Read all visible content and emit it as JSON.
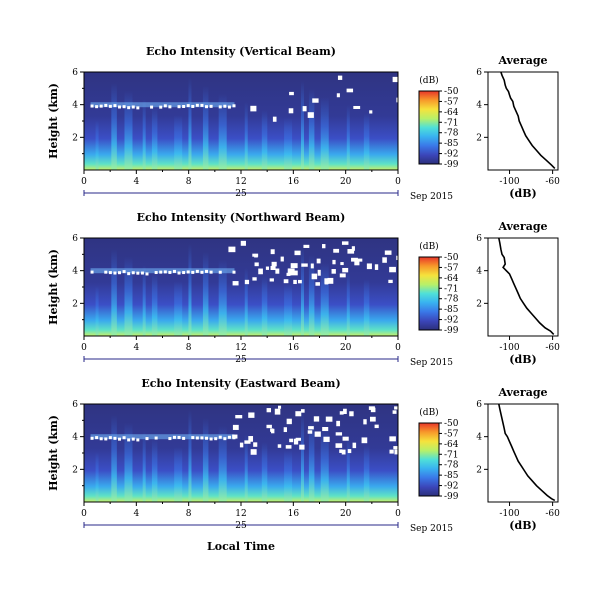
{
  "chart_data": [
    {
      "type": "heatmap",
      "title": "Echo Intensity (Vertical Beam)",
      "ylabel": "Height (km)",
      "ylim": [
        0,
        6
      ],
      "yticks": [
        "2",
        "4",
        "6"
      ],
      "xticks": [
        "0",
        "4",
        "8",
        "12",
        "16",
        "20",
        "0"
      ],
      "xlim_hours": [
        0,
        24
      ],
      "date_axis": {
        "tick_labels": [
          "25"
        ],
        "label": "Sep 2015"
      },
      "colorbar": {
        "label": "(dB)",
        "ticks": [
          "-50",
          "-57",
          "-64",
          "-71",
          "-78",
          "-85",
          "-92",
          "-99"
        ],
        "range": [
          -99,
          -50
        ]
      },
      "average_profile": {
        "title": "Average",
        "xlabel": "(dB)",
        "xticks": [
          "-100",
          "-60"
        ],
        "yticks": [
          "2",
          "4",
          "6"
        ],
        "xlim": [
          -120,
          -55
        ],
        "ylim": [
          0,
          6
        ],
        "points": [
          [
            -108,
            6.0
          ],
          [
            -107,
            5.8
          ],
          [
            -105,
            5.5
          ],
          [
            -104,
            5.2
          ],
          [
            -103,
            5.0
          ],
          [
            -101,
            4.8
          ],
          [
            -100,
            4.6
          ],
          [
            -99,
            4.4
          ],
          [
            -97,
            4.2
          ],
          [
            -96,
            3.9
          ],
          [
            -94,
            3.6
          ],
          [
            -92,
            3.3
          ],
          [
            -91,
            3.0
          ],
          [
            -89,
            2.7
          ],
          [
            -87,
            2.4
          ],
          [
            -85,
            2.1
          ],
          [
            -82,
            1.8
          ],
          [
            -79,
            1.5
          ],
          [
            -75,
            1.2
          ],
          [
            -71,
            0.9
          ],
          [
            -66,
            0.6
          ],
          [
            -61,
            0.3
          ],
          [
            -58,
            0.1
          ]
        ]
      }
    },
    {
      "type": "heatmap",
      "title": "Echo Intensity (Northward Beam)",
      "ylabel": "Height (km)",
      "ylim": [
        0,
        6
      ],
      "yticks": [
        "2",
        "4",
        "6"
      ],
      "xticks": [
        "0",
        "4",
        "8",
        "12",
        "16",
        "20",
        "0"
      ],
      "xlim_hours": [
        0,
        24
      ],
      "date_axis": {
        "tick_labels": [
          "25"
        ],
        "label": "Sep 2015"
      },
      "colorbar": {
        "label": "(dB)",
        "ticks": [
          "-50",
          "-57",
          "-64",
          "-71",
          "-78",
          "-85",
          "-92",
          "-99"
        ],
        "range": [
          -99,
          -50
        ]
      },
      "average_profile": {
        "title": "Average",
        "xlabel": "(dB)",
        "xticks": [
          "-100",
          "-60"
        ],
        "yticks": [
          "2",
          "4",
          "6"
        ],
        "xlim": [
          -120,
          -55
        ],
        "ylim": [
          0,
          6
        ],
        "points": [
          [
            -110,
            6.0
          ],
          [
            -109,
            5.7
          ],
          [
            -108,
            5.3
          ],
          [
            -107,
            5.0
          ],
          [
            -105,
            4.8
          ],
          [
            -104,
            4.4
          ],
          [
            -106,
            4.2
          ],
          [
            -103,
            4.0
          ],
          [
            -100,
            3.8
          ],
          [
            -98,
            3.5
          ],
          [
            -96,
            3.2
          ],
          [
            -94,
            2.9
          ],
          [
            -92,
            2.6
          ],
          [
            -90,
            2.3
          ],
          [
            -87,
            2.0
          ],
          [
            -84,
            1.7
          ],
          [
            -80,
            1.4
          ],
          [
            -76,
            1.1
          ],
          [
            -72,
            0.8
          ],
          [
            -67,
            0.5
          ],
          [
            -62,
            0.3
          ],
          [
            -59,
            0.1
          ]
        ]
      }
    },
    {
      "type": "heatmap",
      "title": "Echo Intensity (Eastward Beam)",
      "ylabel": "Height (km)",
      "ylim": [
        0,
        6
      ],
      "yticks": [
        "2",
        "4",
        "6"
      ],
      "xticks": [
        "0",
        "4",
        "8",
        "12",
        "16",
        "20",
        "0"
      ],
      "xlim_hours": [
        0,
        24
      ],
      "date_axis": {
        "tick_labels": [
          "25"
        ],
        "label": "Sep 2015"
      },
      "xlabel": "Local Time",
      "colorbar": {
        "label": "(dB)",
        "ticks": [
          "-50",
          "-57",
          "-64",
          "-71",
          "-78",
          "-85",
          "-92",
          "-99"
        ],
        "range": [
          -99,
          -50
        ]
      },
      "average_profile": {
        "title": "Average",
        "xlabel": "(dB)",
        "xticks": [
          "-100",
          "-60"
        ],
        "yticks": [
          "2",
          "4",
          "6"
        ],
        "xlim": [
          -120,
          -55
        ],
        "ylim": [
          0,
          6
        ],
        "points": [
          [
            -110,
            6.0
          ],
          [
            -109,
            5.7
          ],
          [
            -108,
            5.4
          ],
          [
            -107,
            5.1
          ],
          [
            -106,
            4.8
          ],
          [
            -105,
            4.5
          ],
          [
            -104,
            4.2
          ],
          [
            -102,
            4.0
          ],
          [
            -100,
            3.7
          ],
          [
            -98,
            3.4
          ],
          [
            -96,
            3.1
          ],
          [
            -94,
            2.8
          ],
          [
            -92,
            2.5
          ],
          [
            -89,
            2.2
          ],
          [
            -86,
            1.9
          ],
          [
            -83,
            1.6
          ],
          [
            -79,
            1.3
          ],
          [
            -75,
            1.0
          ],
          [
            -70,
            0.7
          ],
          [
            -65,
            0.4
          ],
          [
            -61,
            0.2
          ],
          [
            -58,
            0.1
          ]
        ]
      }
    }
  ]
}
